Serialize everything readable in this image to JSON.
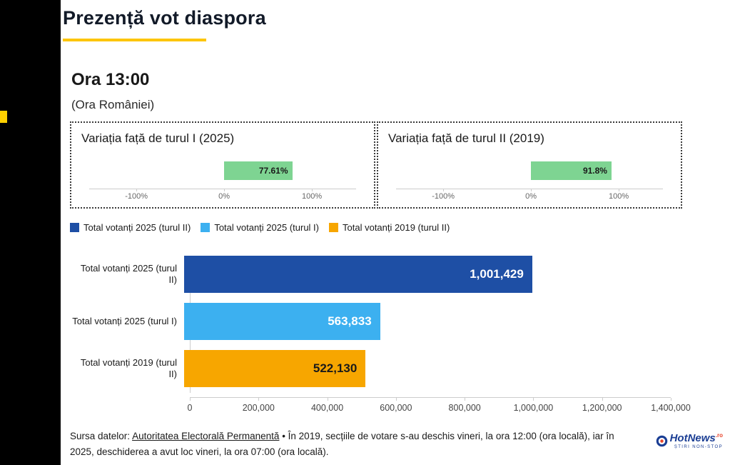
{
  "page": {
    "title": "Prezență vot diaspora",
    "time_heading": "Ora 13:00",
    "time_sub": "(Ora României)"
  },
  "colors": {
    "accent_yellow": "#fdc500",
    "variation_green": "#7ed492",
    "dark_blue": "#1e4fa5",
    "light_blue": "#3cb0f0",
    "orange": "#f7a600",
    "left_bar_black": "#000000"
  },
  "variation_charts": [
    {
      "title": "Variația față de turul I (2025)",
      "value": 77.61,
      "value_label": "77.61%",
      "bar_color": "#7ed492",
      "ticks": [
        "-100%",
        "0%",
        "100%"
      ]
    },
    {
      "title": "Variația față de turul II (2019)",
      "value": 91.8,
      "value_label": "91.8%",
      "bar_color": "#7ed492",
      "ticks": [
        "-100%",
        "0%",
        "100%"
      ]
    }
  ],
  "legend": [
    {
      "label": "Total votanți 2025 (turul II)",
      "color": "#1e4fa5"
    },
    {
      "label": "Total votanți 2025 (turul I)",
      "color": "#3cb0f0"
    },
    {
      "label": "Total votanți 2019 (turul II)",
      "color": "#f7a600"
    }
  ],
  "main_chart": {
    "rows": [
      {
        "label": "Total votanți 2025 (turul II)",
        "value": 1001429,
        "value_label": "1,001,429",
        "color": "#1e4fa5",
        "text_color": "#ffffff"
      },
      {
        "label": "Total votanți 2025 (turul I)",
        "value": 563833,
        "value_label": "563,833",
        "color": "#3cb0f0",
        "text_color": "#ffffff"
      },
      {
        "label": "Total votanți 2019 (turul II)",
        "value": 522130,
        "value_label": "522,130",
        "color": "#f7a600",
        "text_color": "#1a1a1a"
      }
    ],
    "x_ticks": [
      "0",
      "200,000",
      "400,000",
      "600,000",
      "800,000",
      "1,000,000",
      "1,200,000",
      "1,400,000"
    ],
    "x_max": 1400000
  },
  "footer": {
    "prefix": "Sursa datelor: ",
    "link": "Autoritatea Electorală Permanentă",
    "rest": " • În 2019, secțiile de votare s-au deschis vineri, la ora 12:00 (ora locală), iar în 2025, deschiderea a avut loc vineri, la ora 07:00 (ora locală)."
  },
  "logo": {
    "name": "HotNews",
    "tld": ".ro",
    "tagline": "ȘTIRI NON-STOP"
  },
  "chart_data": [
    {
      "type": "bar",
      "orientation": "horizontal",
      "title": "Variația față de turul I (2025)",
      "categories": [
        "Variație față de turul I 2025"
      ],
      "values": [
        77.61
      ],
      "unit": "%",
      "xlim": [
        -100,
        100
      ],
      "x_tick_labels": [
        "-100%",
        "0%",
        "100%"
      ],
      "bar_color": "#7ed492",
      "grid": false
    },
    {
      "type": "bar",
      "orientation": "horizontal",
      "title": "Variația față de turul II (2019)",
      "categories": [
        "Variație față de turul II 2019"
      ],
      "values": [
        91.8
      ],
      "unit": "%",
      "xlim": [
        -100,
        100
      ],
      "x_tick_labels": [
        "-100%",
        "0%",
        "100%"
      ],
      "bar_color": "#7ed492",
      "grid": false
    },
    {
      "type": "bar",
      "orientation": "horizontal",
      "title": "Prezență vot diaspora — Ora 13:00 (Ora României)",
      "categories": [
        "Total votanți 2025 (turul II)",
        "Total votanți 2025 (turul I)",
        "Total votanți 2019 (turul II)"
      ],
      "values": [
        1001429,
        563833,
        522130
      ],
      "data_labels": [
        "1,001,429",
        "563,833",
        "522,130"
      ],
      "colors": [
        "#1e4fa5",
        "#3cb0f0",
        "#f7a600"
      ],
      "xlim": [
        0,
        1400000
      ],
      "x_ticks": [
        0,
        200000,
        400000,
        600000,
        800000,
        1000000,
        1200000,
        1400000
      ],
      "legend_position": "top",
      "grid": false
    }
  ]
}
